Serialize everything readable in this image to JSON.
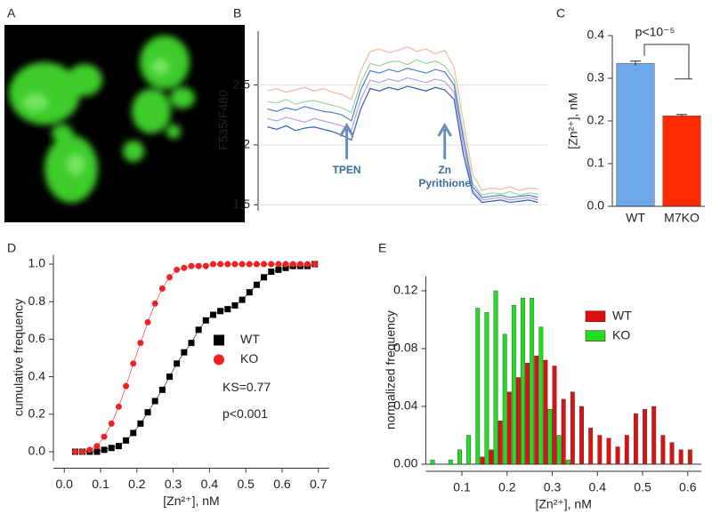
{
  "chart_data": [
    {
      "type": "image",
      "panel_label": "A"
    },
    {
      "type": "line",
      "panel_label": "B",
      "ylabel": "F535/F480",
      "x": [
        1,
        2,
        3,
        4,
        5,
        6,
        7,
        8,
        9,
        10,
        11,
        12,
        13,
        14,
        15,
        16,
        17,
        18,
        19,
        20,
        21,
        22,
        23,
        24,
        25,
        26,
        27,
        28,
        29,
        30
      ],
      "xlim": [
        0,
        31
      ],
      "ylim": [
        1.45,
        2.95
      ],
      "yticks": [
        1.5,
        2,
        2.5
      ],
      "grid": true,
      "annotations": [
        {
          "text": "TPEN",
          "x": 9.5
        },
        {
          "text": "Zn Pyrithione",
          "x": 20
        }
      ],
      "series": [
        {
          "color": "#f0b8a0",
          "values": [
            2.45,
            2.47,
            2.44,
            2.46,
            2.48,
            2.45,
            2.47,
            2.44,
            2.42,
            2.38,
            2.62,
            2.78,
            2.8,
            2.77,
            2.79,
            2.82,
            2.78,
            2.8,
            2.76,
            2.79,
            2.65,
            2.2,
            1.75,
            1.62,
            1.64,
            1.63,
            1.65,
            1.62,
            1.64,
            1.63
          ]
        },
        {
          "color": "#9fd49f",
          "values": [
            2.36,
            2.35,
            2.38,
            2.34,
            2.36,
            2.37,
            2.35,
            2.33,
            2.31,
            2.27,
            2.52,
            2.68,
            2.66,
            2.69,
            2.7,
            2.67,
            2.71,
            2.68,
            2.7,
            2.66,
            2.55,
            2.1,
            1.68,
            1.58,
            1.6,
            1.59,
            1.61,
            1.58,
            1.6,
            1.59
          ]
        },
        {
          "color": "#4f7fd0",
          "values": [
            2.3,
            2.28,
            2.31,
            2.29,
            2.32,
            2.3,
            2.28,
            2.27,
            2.25,
            2.2,
            2.46,
            2.62,
            2.6,
            2.63,
            2.61,
            2.64,
            2.62,
            2.6,
            2.63,
            2.61,
            2.5,
            2.05,
            1.65,
            1.56,
            1.57,
            1.58,
            1.56,
            1.57,
            1.58,
            1.56
          ]
        },
        {
          "color": "#b9a0e0",
          "values": [
            2.22,
            2.2,
            2.23,
            2.21,
            2.19,
            2.22,
            2.2,
            2.18,
            2.16,
            2.12,
            2.38,
            2.54,
            2.52,
            2.55,
            2.53,
            2.56,
            2.54,
            2.52,
            2.55,
            2.53,
            2.44,
            1.98,
            1.62,
            1.54,
            1.55,
            1.56,
            1.54,
            1.55,
            1.56,
            1.54
          ]
        },
        {
          "color": "#2f5fb8",
          "values": [
            2.15,
            2.13,
            2.16,
            2.12,
            2.14,
            2.15,
            2.13,
            2.11,
            2.08,
            2.04,
            2.3,
            2.47,
            2.45,
            2.48,
            2.46,
            2.49,
            2.47,
            2.45,
            2.48,
            2.46,
            2.38,
            1.92,
            1.6,
            1.52,
            1.53,
            1.54,
            1.52,
            1.53,
            1.54,
            1.52
          ]
        }
      ]
    },
    {
      "type": "bar",
      "panel_label": "C",
      "ylabel": "[Zn²⁺], nM",
      "categories": [
        "WT",
        "M7KO"
      ],
      "values": [
        0.335,
        0.212
      ],
      "errors": [
        0.005,
        0.003
      ],
      "colors": [
        "#6fa8e8",
        "#ff2a00"
      ],
      "ylim": [
        0,
        0.4
      ],
      "yticks": [
        {
          "value": 0,
          "label": "0.0"
        },
        0.1,
        0.2,
        0.3,
        0.4
      ],
      "annotation": "p<10⁻⁵"
    },
    {
      "type": "scatter",
      "panel_label": "D",
      "xlabel": "[Zn²⁺], nM",
      "ylabel": "cumulative frequency",
      "xlim": [
        -0.03,
        0.73
      ],
      "ylim": [
        -0.05,
        1.05
      ],
      "xticks": [
        {
          "value": 0,
          "label": "0.0"
        },
        0.1,
        0.2,
        0.3,
        0.4,
        0.5,
        0.6,
        0.7
      ],
      "yticks": [
        {
          "value": 0,
          "label": "0.0"
        },
        0.2,
        0.4,
        0.6,
        0.8,
        {
          "value": 1,
          "label": "1.0"
        }
      ],
      "legend": "center right",
      "annotations": [
        "KS=0.77",
        "p<0.001"
      ],
      "x": [
        0.03,
        0.05,
        0.07,
        0.09,
        0.11,
        0.13,
        0.15,
        0.17,
        0.19,
        0.21,
        0.23,
        0.25,
        0.27,
        0.29,
        0.31,
        0.33,
        0.35,
        0.37,
        0.39,
        0.41,
        0.43,
        0.45,
        0.47,
        0.49,
        0.51,
        0.53,
        0.55,
        0.57,
        0.59,
        0.61,
        0.63,
        0.65,
        0.67,
        0.69
      ],
      "series": [
        {
          "name": "WT",
          "color": "#000000",
          "marker": "square",
          "values": [
            0,
            0,
            0,
            0,
            0.01,
            0.02,
            0.03,
            0.06,
            0.1,
            0.15,
            0.21,
            0.27,
            0.33,
            0.4,
            0.47,
            0.53,
            0.58,
            0.65,
            0.7,
            0.73,
            0.75,
            0.76,
            0.78,
            0.81,
            0.85,
            0.89,
            0.93,
            0.96,
            0.97,
            0.98,
            0.99,
            0.99,
            0.99,
            1
          ]
        },
        {
          "name": "KO",
          "color": "#ee2222",
          "marker": "circle",
          "values": [
            0,
            0,
            0.01,
            0.03,
            0.08,
            0.15,
            0.24,
            0.35,
            0.47,
            0.58,
            0.69,
            0.79,
            0.87,
            0.93,
            0.97,
            0.98,
            0.99,
            0.99,
            0.99,
            1,
            1,
            1,
            1,
            1,
            1,
            1,
            1,
            1,
            1,
            1,
            1,
            1,
            1,
            1
          ]
        }
      ]
    },
    {
      "type": "histogram",
      "panel_label": "E",
      "xlabel": "[Zn²⁺], nM",
      "ylabel": "normalized frequency",
      "xlim": [
        0.02,
        0.63
      ],
      "ylim": [
        0,
        0.13
      ],
      "xticks": [
        0.1,
        0.2,
        0.3,
        0.4,
        0.5,
        0.6
      ],
      "yticks": [
        {
          "value": 0,
          "label": "0.00"
        },
        0.04,
        0.08,
        0.12
      ],
      "legend": "upper right",
      "bins": [
        0.03,
        0.05,
        0.07,
        0.09,
        0.11,
        0.13,
        0.15,
        0.17,
        0.19,
        0.21,
        0.23,
        0.25,
        0.27,
        0.29,
        0.31,
        0.33,
        0.35,
        0.37,
        0.39,
        0.41,
        0.43,
        0.45,
        0.47,
        0.49,
        0.51,
        0.53,
        0.55,
        0.57,
        0.59,
        0.61
      ],
      "series": [
        {
          "name": "WT",
          "color": "#dd1111",
          "values": [
            0,
            0,
            0,
            0,
            0,
            0.005,
            0.01,
            0.03,
            0.05,
            0.06,
            0.07,
            0.075,
            0.072,
            0.068,
            0.045,
            0.05,
            0.04,
            0.025,
            0.02,
            0.018,
            0.012,
            0.02,
            0.035,
            0.038,
            0.04,
            0.02,
            0.015,
            0.01,
            0.01
          ]
        },
        {
          "name": "KO",
          "color": "#22dd22",
          "values": [
            0.003,
            0,
            0.003,
            0.01,
            0.02,
            0.108,
            0.105,
            0.12,
            0.09,
            0.11,
            0.115,
            0.115,
            0.095,
            0.038,
            0.02,
            0.003,
            0,
            0,
            0,
            0,
            0,
            0,
            0,
            0,
            0,
            0,
            0,
            0,
            0
          ]
        }
      ]
    }
  ]
}
